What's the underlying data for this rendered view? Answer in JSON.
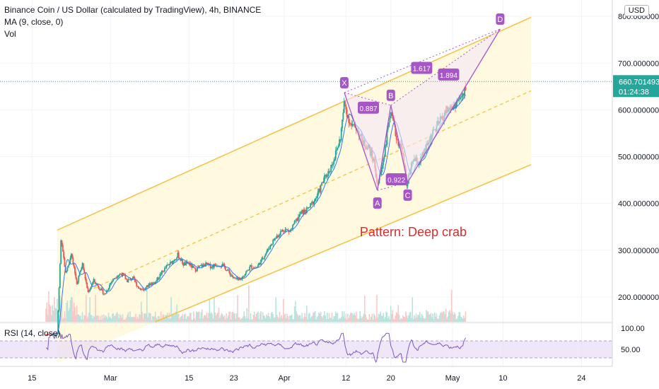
{
  "legend": {
    "title": "Binance Coin / US Dollar (calculated by TradingView), 4h, BINANCE",
    "ma": "MA (9, close, 0)",
    "vol": "Vol"
  },
  "currency_button": "USD",
  "rsi_label": "RSI (14, close)",
  "last_price": {
    "value": "660.701493",
    "countdown": "01:24:38",
    "color": "#26a69a"
  },
  "colors": {
    "channel": "#f7c043",
    "channel_fill": "#fff9dc",
    "pattern": "#a855c8",
    "pattern_fill": "#f2e6f7",
    "annotation": "#d32f2f",
    "up": "#26a69a",
    "down": "#ef5350",
    "ma": "#3179f5",
    "rsi_line": "#7e57c2",
    "rsi_band": "#e8dcf5"
  },
  "chart_data": {
    "type": "candlestick",
    "x_ticks": [
      {
        "label": "15",
        "day": 14
      },
      {
        "label": "Mar",
        "day": 28
      },
      {
        "label": "15",
        "day": 42
      },
      {
        "label": "23",
        "day": 50
      },
      {
        "label": "Apr",
        "day": 59
      },
      {
        "label": "12",
        "day": 70
      },
      {
        "label": "20",
        "day": 78
      },
      {
        "label": "May",
        "day": 89
      },
      {
        "label": "10",
        "day": 98
      },
      {
        "label": "24",
        "day": 112
      }
    ],
    "x_range": [
      8.3,
      117.5
    ],
    "y_ticks": [
      "800.000000",
      "700.000000",
      "600.000000",
      "500.000000",
      "400.000000",
      "300.000000",
      "200.000000"
    ],
    "y_tick_values": [
      800,
      700,
      600,
      500,
      400,
      300,
      200
    ],
    "y_range": [
      147,
      835
    ],
    "price_path": [
      [
        18.5,
        120
      ],
      [
        19.2,
        330
      ],
      [
        20.0,
        250
      ],
      [
        21.0,
        290
      ],
      [
        22.0,
        230
      ],
      [
        23.0,
        270
      ],
      [
        24.0,
        210
      ],
      [
        25.0,
        235
      ],
      [
        26.0,
        220
      ],
      [
        27.0,
        205
      ],
      [
        28.0,
        230
      ],
      [
        29.0,
        245
      ],
      [
        30.0,
        250
      ],
      [
        31.0,
        235
      ],
      [
        32.0,
        240
      ],
      [
        33.0,
        220
      ],
      [
        34.0,
        215
      ],
      [
        35.0,
        228
      ],
      [
        36.0,
        232
      ],
      [
        37.0,
        250
      ],
      [
        38.0,
        265
      ],
      [
        39.0,
        275
      ],
      [
        40.0,
        290
      ],
      [
        41.0,
        270
      ],
      [
        42.0,
        272
      ],
      [
        43.0,
        258
      ],
      [
        44.0,
        265
      ],
      [
        45.0,
        270
      ],
      [
        46.0,
        265
      ],
      [
        47.0,
        270
      ],
      [
        48.0,
        268
      ],
      [
        49.0,
        255
      ],
      [
        50.0,
        240
      ],
      [
        51.0,
        235
      ],
      [
        52.0,
        250
      ],
      [
        53.0,
        265
      ],
      [
        54.0,
        262
      ],
      [
        55.0,
        280
      ],
      [
        56.0,
        300
      ],
      [
        57.0,
        320
      ],
      [
        58.0,
        335
      ],
      [
        59.0,
        345
      ],
      [
        60.0,
        340
      ],
      [
        61.0,
        360
      ],
      [
        62.0,
        380
      ],
      [
        63.0,
        385
      ],
      [
        64.0,
        400
      ],
      [
        65.0,
        420
      ],
      [
        66.0,
        450
      ],
      [
        67.0,
        470
      ],
      [
        68.0,
        500
      ],
      [
        69.0,
        540
      ],
      [
        69.7,
        615
      ],
      [
        70.5,
        580
      ],
      [
        71.0,
        565
      ],
      [
        72.0,
        560
      ],
      [
        73.0,
        530
      ],
      [
        74.0,
        520
      ],
      [
        75.0,
        490
      ],
      [
        75.6,
        440
      ],
      [
        76.3,
        470
      ],
      [
        77.0,
        520
      ],
      [
        77.8,
        590
      ],
      [
        78.5,
        570
      ],
      [
        79.0,
        540
      ],
      [
        80.0,
        515
      ],
      [
        80.8,
        440
      ],
      [
        81.5,
        470
      ],
      [
        82.0,
        495
      ],
      [
        83.0,
        485
      ],
      [
        84.0,
        510
      ],
      [
        85.0,
        540
      ],
      [
        86.0,
        560
      ],
      [
        87.0,
        580
      ],
      [
        88.0,
        600
      ],
      [
        89.0,
        605
      ],
      [
        90.0,
        620
      ],
      [
        91.0,
        630
      ],
      [
        91.5,
        660
      ]
    ],
    "channel": {
      "upper": [
        [
          18.5,
          343
        ],
        [
          103.0,
          798
        ]
      ],
      "middle": [
        [
          24.0,
          213
        ],
        [
          103.0,
          641
        ]
      ],
      "lower": [
        [
          36.0,
          147
        ],
        [
          103.0,
          483
        ]
      ]
    },
    "pattern_points": [
      {
        "label": "X",
        "day": 69.7,
        "price": 637
      },
      {
        "label": "A",
        "day": 75.6,
        "price": 428
      },
      {
        "label": "B",
        "day": 78.0,
        "price": 610
      },
      {
        "label": "C",
        "day": 81.0,
        "price": 445
      },
      {
        "label": "D",
        "day": 97.5,
        "price": 773
      }
    ],
    "ratios": [
      {
        "label": "0.887",
        "day": 74.0,
        "price": 604
      },
      {
        "label": "0.922",
        "day": 79.0,
        "price": 451
      },
      {
        "label": "1.617",
        "day": 83.5,
        "price": 689
      },
      {
        "label": "1.894",
        "day": 88.3,
        "price": 675
      }
    ],
    "annotation": {
      "text": "Pattern: Deep crab",
      "day": 82.0,
      "price": 330
    },
    "rsi": {
      "ticks": [
        "100.00",
        "50.00"
      ],
      "tick_values": [
        100,
        50
      ],
      "band": [
        30,
        70
      ],
      "range": [
        10,
        110
      ]
    }
  }
}
